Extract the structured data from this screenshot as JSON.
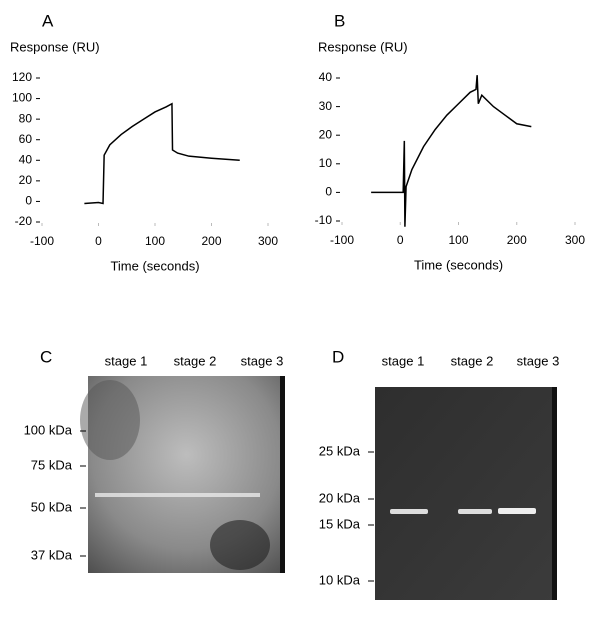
{
  "chart_data": [
    {
      "type": "line",
      "panel": "A",
      "ylabel": "Response (RU)",
      "xlabel": "Time (seconds)",
      "color": "#000000",
      "x": [
        -25,
        0,
        8,
        10,
        20,
        40,
        60,
        80,
        100,
        120,
        130,
        131,
        140,
        160,
        200,
        250
      ],
      "values": [
        -2,
        -1,
        -2,
        45,
        55,
        65,
        73,
        80,
        87,
        92,
        95,
        50,
        47,
        44,
        42,
        40
      ],
      "xlim": [
        -100,
        300
      ],
      "xticks": [
        -100,
        0,
        100,
        200,
        300
      ],
      "ylim": [
        -20,
        120
      ],
      "yticks": [
        -20,
        0,
        20,
        40,
        60,
        80,
        100,
        120
      ]
    },
    {
      "type": "line",
      "panel": "B",
      "ylabel": "Response (RU)",
      "xlabel": "Time (seconds)",
      "color": "#000000",
      "x": [
        -50,
        5,
        7,
        8,
        10,
        20,
        40,
        60,
        80,
        100,
        120,
        130,
        132,
        134,
        140,
        160,
        180,
        200,
        225
      ],
      "values": [
        0,
        0,
        18,
        -12,
        2,
        8,
        16,
        22,
        27,
        31,
        35,
        36,
        41,
        31,
        34,
        30,
        27,
        24,
        23
      ],
      "xlim": [
        -100,
        300
      ],
      "xticks": [
        -100,
        0,
        100,
        200,
        300
      ],
      "ylim": [
        -10,
        40
      ],
      "yticks": [
        -10,
        0,
        10,
        20,
        30,
        40
      ]
    }
  ],
  "gels": [
    {
      "panel": "C",
      "lanes": [
        "stage 1",
        "stage 2",
        "stage 3"
      ],
      "markers": [
        "100 kDa",
        "75 kDa",
        "50 kDa",
        "37 kDa"
      ]
    },
    {
      "panel": "D",
      "lanes": [
        "stage 1",
        "stage 2",
        "stage 3"
      ],
      "markers": [
        "25 kDa",
        "20 kDa",
        "15 kDa",
        "10 kDa"
      ]
    }
  ]
}
